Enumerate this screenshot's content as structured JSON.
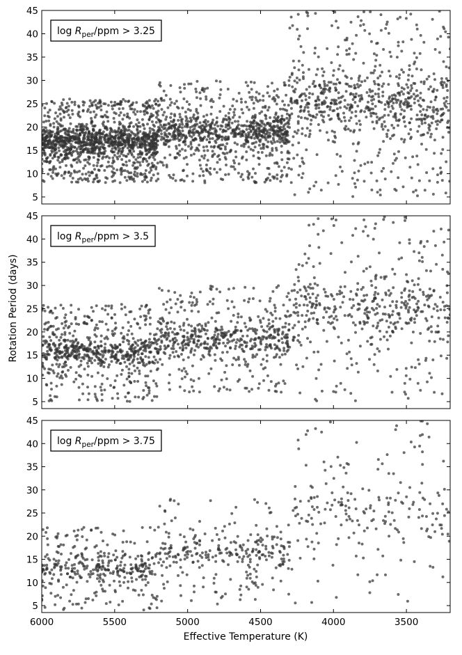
{
  "chart_data": {
    "type": "scatter",
    "xlabel": "Effective Temperature (K)",
    "ylabel": "Rotation Period (days)",
    "xlim": [
      6000,
      3200
    ],
    "ylim": [
      3.5,
      45
    ],
    "x_reversed": true,
    "xticks": [
      "6000",
      "5500",
      "5000",
      "4500",
      "4000",
      "3500"
    ],
    "yticks": [
      "5",
      "10",
      "15",
      "20",
      "25",
      "30",
      "35",
      "40",
      "45"
    ],
    "grid": false,
    "marker_color": "#333333",
    "seed": 20240521,
    "panels": [
      {
        "label_prefix": "log ",
        "label_symbol": "R",
        "label_sub": "per",
        "label_suffix": "/ppm > 3.25",
        "n_points": 3000,
        "clusters": [
          {
            "teff_range": [
              6000,
              5200
            ],
            "p_range": [
              8,
              26
            ],
            "weight": 0.45
          },
          {
            "teff_range": [
              5200,
              4300
            ],
            "p_range": [
              8,
              30
            ],
            "weight": 0.3
          },
          {
            "teff_range": [
              4300,
              3200
            ],
            "p_range": [
              5,
              45
            ],
            "weight": 0.25
          }
        ]
      },
      {
        "label_prefix": "log ",
        "label_symbol": "R",
        "label_sub": "per",
        "label_suffix": "/ppm > 3.5",
        "n_points": 1700,
        "clusters": [
          {
            "teff_range": [
              6000,
              5200
            ],
            "p_range": [
              5,
              26
            ],
            "weight": 0.4
          },
          {
            "teff_range": [
              5200,
              4300
            ],
            "p_range": [
              7,
              30
            ],
            "weight": 0.32
          },
          {
            "teff_range": [
              4300,
              3200
            ],
            "p_range": [
              5,
              45
            ],
            "weight": 0.28
          }
        ]
      },
      {
        "label_prefix": "log ",
        "label_symbol": "R",
        "label_sub": "per",
        "label_suffix": "/ppm > 3.75",
        "n_points": 850,
        "clusters": [
          {
            "teff_range": [
              6000,
              5200
            ],
            "p_range": [
              4,
              22
            ],
            "weight": 0.42
          },
          {
            "teff_range": [
              5200,
              4300
            ],
            "p_range": [
              5,
              28
            ],
            "weight": 0.33
          },
          {
            "teff_range": [
              4300,
              3200
            ],
            "p_range": [
              5,
              45
            ],
            "weight": 0.25
          }
        ]
      }
    ]
  }
}
